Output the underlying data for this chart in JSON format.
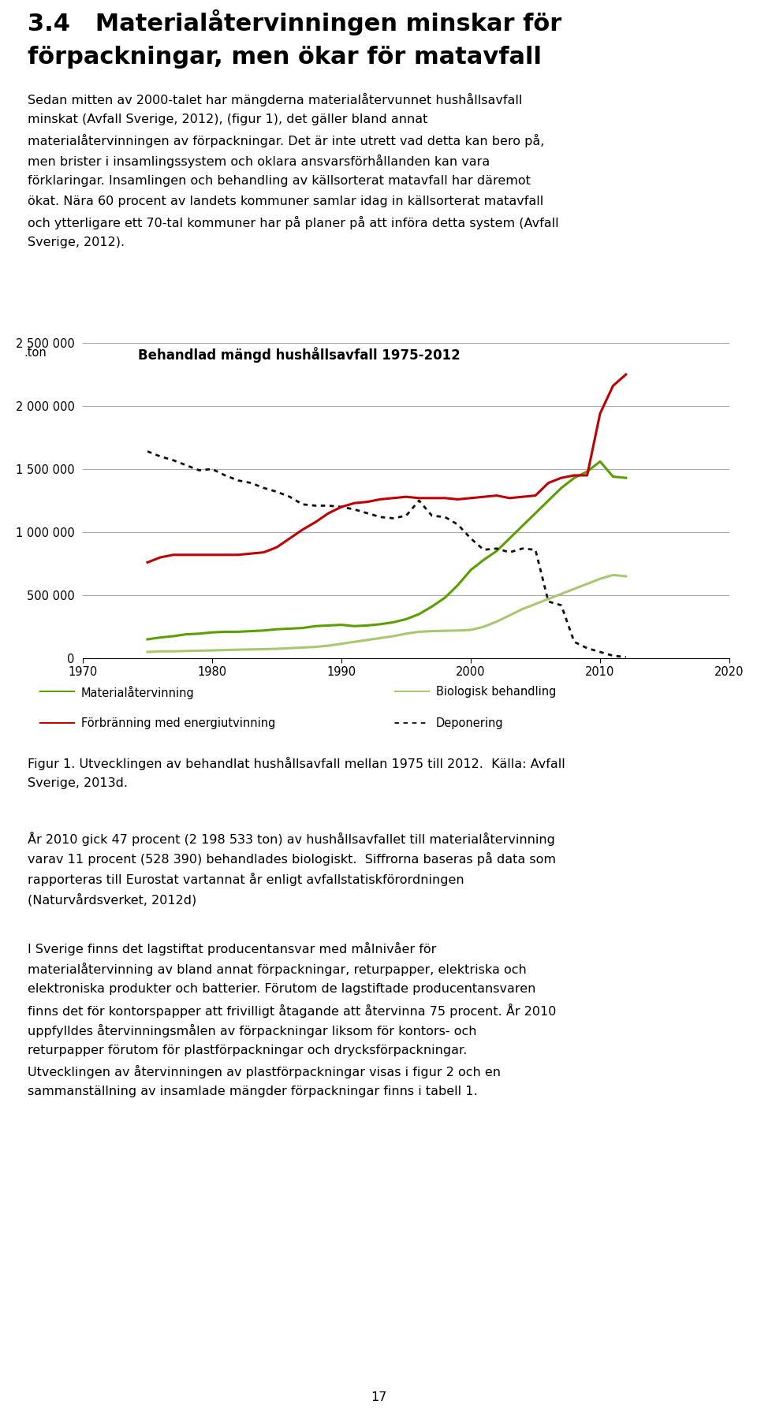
{
  "heading_line1": "3.4   Materialåtervinningen minskar för",
  "heading_line2": "förpackningar, men ökar för matavfall",
  "body1_lines": [
    "Sedan mitten av 2000-talet har mängderna materialåtervunnet hushållsavfall",
    "minskat (Avfall Sverige, 2012), (figur 1), det gäller bland annat",
    "materialåtervinningen av förpackningar. Det är inte utrett vad detta kan bero på,",
    "men brister i insamlingssystem och oklara ansvarsförhållanden kan vara",
    "förklaringar. Insamlingen och behandling av källsorterat matavfall har däremot",
    "ökat. Nära 60 procent av landets kommuner samlar idag in källsorterat matavfall",
    "och ytterligare ett 70-tal kommuner har på planer på att införa detta system (Avfall",
    "Sverige, 2012)."
  ],
  "chart_title": "Behandlad mängd hushållsavfall 1975-2012",
  "ylabel_label": ".ton",
  "xlabel_ticks": [
    1970,
    1980,
    1990,
    2000,
    2010,
    2020
  ],
  "yticks": [
    0,
    500000,
    1000000,
    1500000,
    2000000,
    2500000
  ],
  "ytick_labels": [
    "0",
    "500 000",
    "1 000 000",
    "1 500 000",
    "2 000 000",
    "2 500 000"
  ],
  "xmin": 1970,
  "xmax": 2020,
  "ymin": 0,
  "ymax": 2500000,
  "materialatervinning_x": [
    1975,
    1976,
    1977,
    1978,
    1979,
    1980,
    1981,
    1982,
    1983,
    1984,
    1985,
    1986,
    1987,
    1988,
    1989,
    1990,
    1991,
    1992,
    1993,
    1994,
    1995,
    1996,
    1997,
    1998,
    1999,
    2000,
    2001,
    2002,
    2003,
    2004,
    2005,
    2006,
    2007,
    2008,
    2009,
    2010,
    2011,
    2012
  ],
  "materialatervinning_y": [
    150000,
    165000,
    175000,
    190000,
    195000,
    205000,
    210000,
    210000,
    215000,
    220000,
    230000,
    235000,
    240000,
    255000,
    260000,
    265000,
    255000,
    260000,
    270000,
    285000,
    310000,
    350000,
    410000,
    480000,
    580000,
    700000,
    780000,
    850000,
    950000,
    1050000,
    1150000,
    1250000,
    1350000,
    1430000,
    1480000,
    1560000,
    1440000,
    1430000
  ],
  "biologisk_x": [
    1975,
    1976,
    1977,
    1978,
    1979,
    1980,
    1981,
    1982,
    1983,
    1984,
    1985,
    1986,
    1987,
    1988,
    1989,
    1990,
    1991,
    1992,
    1993,
    1994,
    1995,
    1996,
    1997,
    1998,
    1999,
    2000,
    2001,
    2002,
    2003,
    2004,
    2005,
    2006,
    2007,
    2008,
    2009,
    2010,
    2011,
    2012
  ],
  "biologisk_y": [
    50000,
    55000,
    55000,
    58000,
    60000,
    62000,
    65000,
    68000,
    70000,
    72000,
    75000,
    80000,
    85000,
    90000,
    100000,
    115000,
    130000,
    145000,
    160000,
    175000,
    195000,
    210000,
    215000,
    218000,
    220000,
    225000,
    250000,
    290000,
    340000,
    390000,
    430000,
    470000,
    510000,
    550000,
    590000,
    630000,
    660000,
    650000
  ],
  "forbranning_x": [
    1975,
    1976,
    1977,
    1978,
    1979,
    1980,
    1981,
    1982,
    1983,
    1984,
    1985,
    1986,
    1987,
    1988,
    1989,
    1990,
    1991,
    1992,
    1993,
    1994,
    1995,
    1996,
    1997,
    1998,
    1999,
    2000,
    2001,
    2002,
    2003,
    2004,
    2005,
    2006,
    2007,
    2008,
    2009,
    2010,
    2011,
    2012
  ],
  "forbranning_y": [
    760000,
    800000,
    820000,
    820000,
    820000,
    820000,
    820000,
    820000,
    830000,
    840000,
    880000,
    950000,
    1020000,
    1080000,
    1150000,
    1200000,
    1230000,
    1240000,
    1260000,
    1270000,
    1280000,
    1270000,
    1270000,
    1270000,
    1260000,
    1270000,
    1280000,
    1290000,
    1270000,
    1280000,
    1290000,
    1390000,
    1430000,
    1450000,
    1450000,
    1940000,
    2160000,
    2250000
  ],
  "deponering_x": [
    1975,
    1976,
    1977,
    1978,
    1979,
    1980,
    1981,
    1982,
    1983,
    1984,
    1985,
    1986,
    1987,
    1988,
    1989,
    1990,
    1991,
    1992,
    1993,
    1994,
    1995,
    1996,
    1997,
    1998,
    1999,
    2000,
    2001,
    2002,
    2003,
    2004,
    2005,
    2006,
    2007,
    2008,
    2009,
    2010,
    2011,
    2012
  ],
  "deponering_y": [
    1640000,
    1600000,
    1570000,
    1530000,
    1490000,
    1500000,
    1450000,
    1410000,
    1390000,
    1350000,
    1320000,
    1280000,
    1220000,
    1210000,
    1210000,
    1200000,
    1180000,
    1150000,
    1120000,
    1110000,
    1130000,
    1250000,
    1130000,
    1120000,
    1060000,
    950000,
    860000,
    870000,
    840000,
    870000,
    860000,
    450000,
    420000,
    130000,
    80000,
    50000,
    20000,
    10000
  ],
  "color_materialatervinning": "#5a9e00",
  "color_biologisk": "#a8c870",
  "color_forbranning": "#c00000",
  "color_deponering": "#111111",
  "legend_entries": [
    "Materialåtervinning",
    "Biologisk behandling",
    "Förbränning med energiutvinning",
    "Deponering"
  ],
  "caption_line1": "Figur 1. Utvecklingen av behandlat hushållsavfall mellan 1975 till 2012.  Källa: Avfall",
  "caption_line2": "Sverige, 2013d.",
  "body2_lines": [
    "År 2010 gick 47 procent (2 198 533 ton) av hushållsavfallet till materialåtervinning",
    "varav 11 procent (528 390) behandlades biologiskt.  Siffrorna baseras på data som",
    "rapporteras till Eurostat vartannat år enligt avfallstatiskförordningen",
    "(Naturvårdsverket, 2012d)"
  ],
  "body3_lines": [
    "I Sverige finns det lagstiftat producentansvar med målnivåer för",
    "materialåtervinning av bland annat förpackningar, returpapper, elektriska och",
    "elektroniska produkter och batterier. Förutom de lagstiftade producentansvaren",
    "finns det för kontorspapper att frivilligt åtagande att återvinna 75 procent. År 2010",
    "uppfylldes återvinningsmålen av förpackningar liksom för kontors- och",
    "returpapper förutom för plastförpackningar och drycksförpackningar.",
    "Utvecklingen av återvinningen av plastförpackningar visas i figur 2 och en",
    "sammanställning av insamlade mängder förpackningar finns i tabell 1."
  ],
  "page_number": "17"
}
